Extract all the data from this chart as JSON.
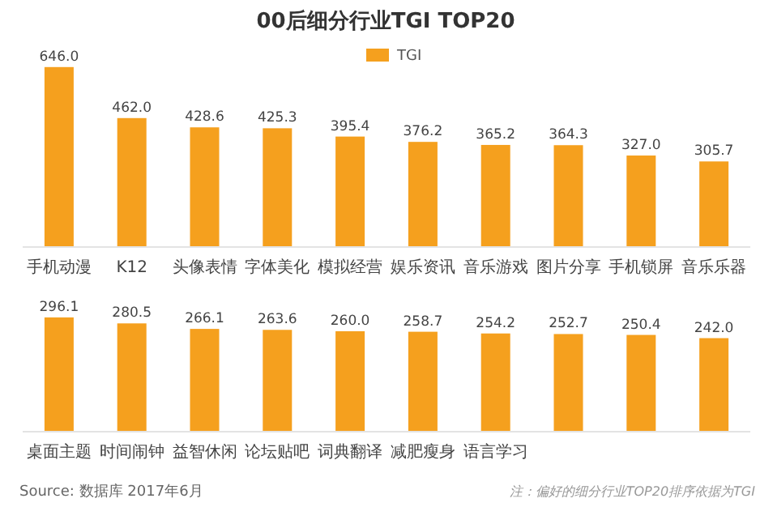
{
  "chart_data": [
    {
      "type": "bar",
      "title": "00后细分行业TGI TOP20",
      "legend": "top",
      "categories": [
        "手机动漫",
        "K12",
        "头像表情",
        "字体美化",
        "模拟经营",
        "娱乐资讯",
        "音乐游戏",
        "图片分享",
        "手机锁屏",
        "音乐乐器"
      ],
      "series": [
        {
          "name": "TGI",
          "color": "#f5a01e",
          "values": [
            646.0,
            462.0,
            428.6,
            425.3,
            395.4,
            376.2,
            365.2,
            364.3,
            327.0,
            305.7
          ],
          "value_labels": [
            "646.0",
            "462.0",
            "428.6",
            "425.3",
            "395.4",
            "376.2",
            "365.2",
            "364.3",
            "327.0",
            "305.7"
          ]
        }
      ]
    },
    {
      "type": "bar",
      "categories": [
        "桌面主题",
        "时间闹钟",
        "益智休闲",
        "论坛贴吧",
        "词典翻译",
        "减肥瘦身",
        "语言学习",
        null,
        null,
        null
      ],
      "series": [
        {
          "color": "#f5a01e",
          "values": [
            296.1,
            280.5,
            266.1,
            263.6,
            260.0,
            258.7,
            254.2,
            252.7,
            250.4,
            242.0
          ],
          "value_labels": [
            "296.1",
            "280.5",
            "266.1",
            "263.6",
            "260.0",
            "258.7",
            "254.2",
            "252.7",
            "250.4",
            "242.0"
          ]
        }
      ],
      "annotations": [
        "Source: 数据库 2017年6月",
        "注：偏好的细分行业TOP20排序依据为TGI"
      ]
    }
  ]
}
